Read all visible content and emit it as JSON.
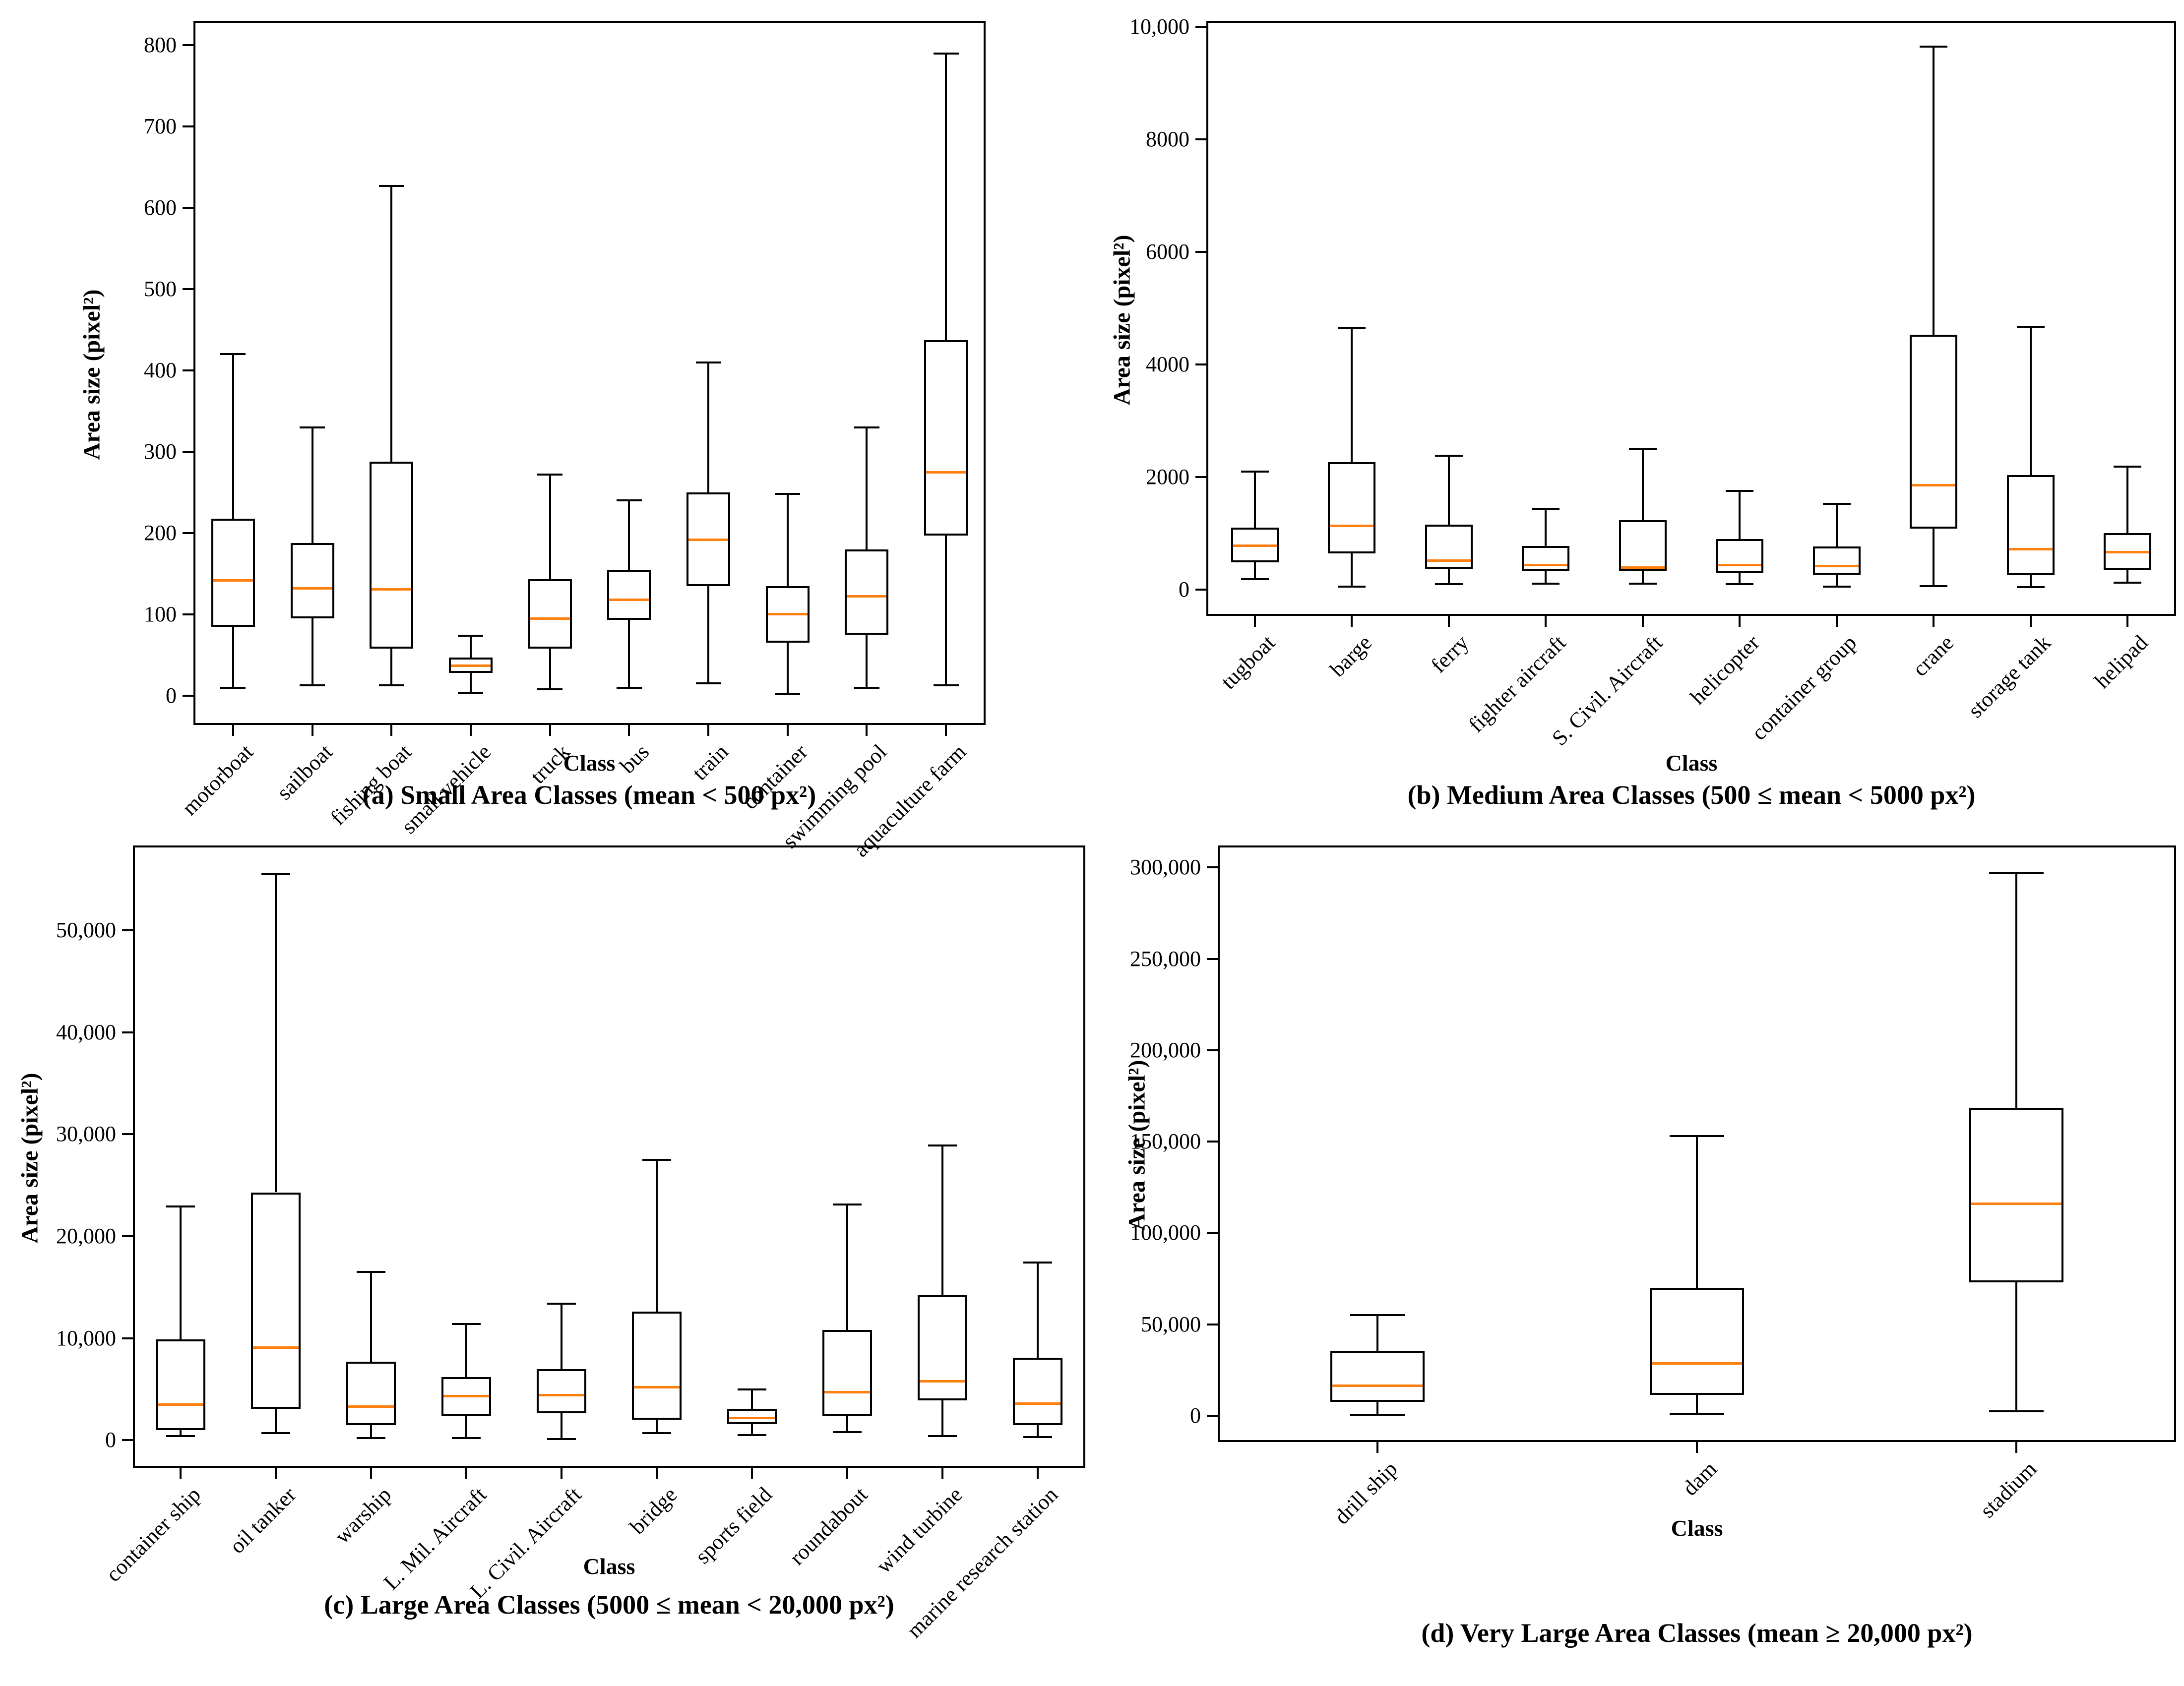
{
  "figure": {
    "background": "#ffffff",
    "axis_color": "#000000",
    "median_color": "#ff7f0e",
    "ylabel": "Area size (pixel²)",
    "xlabel": "Class"
  },
  "chart_data": [
    {
      "type": "boxplot",
      "panel": "a",
      "caption": "(a) Small Area Classes (mean < 500 px²)",
      "xlabel": "Class",
      "ylabel": "Area size (pixel²)",
      "ylim": [
        -36,
        830
      ],
      "grid": false,
      "ytick_values": [
        0,
        100,
        200,
        300,
        400,
        500,
        600,
        700,
        800
      ],
      "ytick_labels": [
        "0",
        "100",
        "200",
        "300",
        "400",
        "500",
        "600",
        "700",
        "800"
      ],
      "categories": [
        "motorboat",
        "sailboat",
        "fishing boat",
        "small vehicle",
        "truck",
        "bus",
        "train",
        "container",
        "swimming pool",
        "aquaculture farm"
      ],
      "stats": [
        {
          "label": "motorboat",
          "whislo": 10,
          "q1": 85,
          "med": 142,
          "q3": 218,
          "whishi": 420
        },
        {
          "label": "sailboat",
          "whislo": 13,
          "q1": 95,
          "med": 132,
          "q3": 188,
          "whishi": 330
        },
        {
          "label": "fishing boat",
          "whislo": 13,
          "q1": 58,
          "med": 131,
          "q3": 288,
          "whishi": 627
        },
        {
          "label": "small vehicle",
          "whislo": 3,
          "q1": 28,
          "med": 37,
          "q3": 47,
          "whishi": 74
        },
        {
          "label": "truck",
          "whislo": 8,
          "q1": 58,
          "med": 95,
          "q3": 143,
          "whishi": 272
        },
        {
          "label": "bus",
          "whislo": 10,
          "q1": 93,
          "med": 118,
          "q3": 155,
          "whishi": 240
        },
        {
          "label": "train",
          "whislo": 15,
          "q1": 135,
          "med": 192,
          "q3": 250,
          "whishi": 410
        },
        {
          "label": "container",
          "whislo": 2,
          "q1": 65,
          "med": 100,
          "q3": 135,
          "whishi": 248
        },
        {
          "label": "swimming pool",
          "whislo": 10,
          "q1": 75,
          "med": 122,
          "q3": 180,
          "whishi": 330
        },
        {
          "label": "aquaculture farm",
          "whislo": 13,
          "q1": 197,
          "med": 275,
          "q3": 437,
          "whishi": 790
        }
      ]
    },
    {
      "type": "boxplot",
      "panel": "b",
      "caption": "(b) Medium Area Classes (500 ≤ mean < 5000 px²)",
      "xlabel": "Class",
      "ylabel": "Area size (pixel²)",
      "ylim": [
        -470,
        10110
      ],
      "grid": false,
      "ytick_values": [
        0,
        2000,
        4000,
        6000,
        8000,
        10000
      ],
      "ytick_labels": [
        "0",
        "2000",
        "4000",
        "6000",
        "8000",
        "10,000"
      ],
      "categories": [
        "tugboat",
        "barge",
        "ferry",
        "fighter aircraft",
        "S. Civil. Aircraft",
        "helicopter",
        "container group",
        "crane",
        "storage tank",
        "helipad"
      ],
      "stats": [
        {
          "label": "tugboat",
          "whislo": 180,
          "q1": 480,
          "med": 780,
          "q3": 1100,
          "whishi": 2100
        },
        {
          "label": "barge",
          "whislo": 50,
          "q1": 640,
          "med": 1130,
          "q3": 2260,
          "whishi": 4650
        },
        {
          "label": "ferry",
          "whislo": 90,
          "q1": 370,
          "med": 510,
          "q3": 1150,
          "whishi": 2380
        },
        {
          "label": "fighter aircraft",
          "whislo": 100,
          "q1": 330,
          "med": 430,
          "q3": 770,
          "whishi": 1430
        },
        {
          "label": "S. Civil. Aircraft",
          "whislo": 100,
          "q1": 330,
          "med": 390,
          "q3": 1230,
          "whishi": 2500
        },
        {
          "label": "helicopter",
          "whislo": 90,
          "q1": 290,
          "med": 430,
          "q3": 900,
          "whishi": 1750
        },
        {
          "label": "container group",
          "whislo": 50,
          "q1": 260,
          "med": 420,
          "q3": 760,
          "whishi": 1520
        },
        {
          "label": "crane",
          "whislo": 60,
          "q1": 1080,
          "med": 1850,
          "q3": 4530,
          "whishi": 9650
        },
        {
          "label": "storage tank",
          "whislo": 40,
          "q1": 250,
          "med": 720,
          "q3": 2030,
          "whishi": 4670
        },
        {
          "label": "helipad",
          "whislo": 120,
          "q1": 350,
          "med": 660,
          "q3": 1000,
          "whishi": 2180
        }
      ]
    },
    {
      "type": "boxplot",
      "panel": "c",
      "caption": "(c) Large Area Classes (5000 ≤ mean < 20,000 px²)",
      "xlabel": "Class",
      "ylabel": "Area size (pixel²)",
      "ylim": [
        -2700,
        58300
      ],
      "grid": false,
      "ytick_values": [
        0,
        10000,
        20000,
        30000,
        40000,
        50000
      ],
      "ytick_labels": [
        "0",
        "10,000",
        "20,000",
        "30,000",
        "40,000",
        "50,000"
      ],
      "categories": [
        "container ship",
        "oil tanker",
        "warship",
        "L. Mil. Aircraft",
        "L. Civil. Aircraft",
        "bridge",
        "sports field",
        "roundabout",
        "wind turbine",
        "marine research station"
      ],
      "stats": [
        {
          "label": "container ship",
          "whislo": 400,
          "q1": 1000,
          "med": 3500,
          "q3": 9900,
          "whishi": 22900
        },
        {
          "label": "oil tanker",
          "whislo": 700,
          "q1": 3100,
          "med": 9100,
          "q3": 24300,
          "whishi": 55500
        },
        {
          "label": "warship",
          "whislo": 200,
          "q1": 1500,
          "med": 3300,
          "q3": 7700,
          "whishi": 16500
        },
        {
          "label": "L. Mil. Aircraft",
          "whislo": 200,
          "q1": 2400,
          "med": 4300,
          "q3": 6200,
          "whishi": 11400
        },
        {
          "label": "L. Civil. Aircraft",
          "whislo": 100,
          "q1": 2650,
          "med": 4400,
          "q3": 6950,
          "whishi": 13400
        },
        {
          "label": "bridge",
          "whislo": 700,
          "q1": 2000,
          "med": 5200,
          "q3": 12600,
          "whishi": 27500
        },
        {
          "label": "sports field",
          "whislo": 500,
          "q1": 1600,
          "med": 2200,
          "q3": 3100,
          "whishi": 5000
        },
        {
          "label": "roundabout",
          "whislo": 800,
          "q1": 2400,
          "med": 4700,
          "q3": 10800,
          "whishi": 23100
        },
        {
          "label": "wind turbine",
          "whislo": 400,
          "q1": 3900,
          "med": 5800,
          "q3": 14200,
          "whishi": 28900
        },
        {
          "label": "marine research station",
          "whislo": 300,
          "q1": 1500,
          "med": 3600,
          "q3": 8100,
          "whishi": 17400
        }
      ]
    },
    {
      "type": "boxplot",
      "panel": "d",
      "caption": "(d) Very Large Area Classes (mean ≥ 20,000 px²)",
      "xlabel": "Class",
      "ylabel": "Area size (pixel²)",
      "ylim": [
        -14400,
        312000
      ],
      "grid": false,
      "ytick_values": [
        0,
        50000,
        100000,
        150000,
        200000,
        250000,
        300000
      ],
      "ytick_labels": [
        "0",
        "50,000",
        "100,000",
        "150,000",
        "200,000",
        "250,000",
        "300,000"
      ],
      "categories": [
        "drill ship",
        "dam",
        "stadium"
      ],
      "stats": [
        {
          "label": "drill ship",
          "whislo": 500,
          "q1": 7500,
          "med": 16500,
          "q3": 35500,
          "whishi": 55000
        },
        {
          "label": "dam",
          "whislo": 1000,
          "q1": 11500,
          "med": 28500,
          "q3": 70000,
          "whishi": 153000
        },
        {
          "label": "stadium",
          "whislo": 2500,
          "q1": 73000,
          "med": 116000,
          "q3": 168500,
          "whishi": 297000
        }
      ]
    }
  ]
}
